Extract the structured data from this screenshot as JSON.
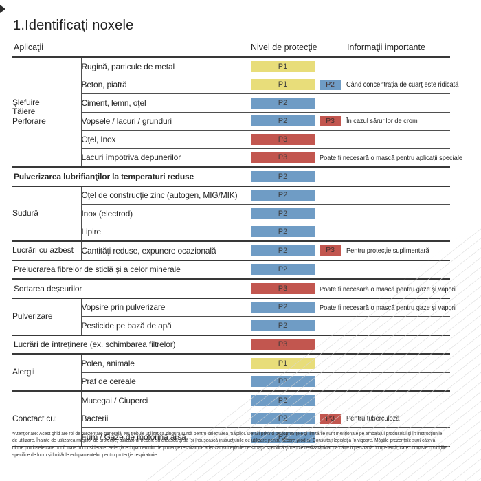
{
  "page": {
    "title": "1.Identificaţi noxele"
  },
  "table": {
    "headers": {
      "applications": "Aplicaţii",
      "level": "Nivel de protecţie",
      "info": "Informaţii importante"
    },
    "rows": [
      {
        "group": "Şlefuire\nTăiere\nPerforare",
        "group_span": 6,
        "application": "Rugină, particule de metal",
        "level": "P1"
      },
      {
        "application": "Beton, piatră",
        "level": "P1",
        "badge": "P2",
        "info": "Când concentraţia de cuarţ este ridicată"
      },
      {
        "application": "Ciment, lemn, oţel",
        "level": "P2"
      },
      {
        "application": "Vopsele / lacuri / grunduri",
        "level": "P2",
        "badge": "P3",
        "info": "În cazul sărurilor de crom"
      },
      {
        "application": "Oţel, Inox",
        "level": "P3"
      },
      {
        "application": "Lacuri împotriva depunerilor",
        "level": "P3",
        "info": "Poate fi necesară o mască pentru aplicaţii speciale"
      },
      {
        "full": true,
        "bold": true,
        "application": "Pulverizarea lubrifianţilor la temperaturi reduse",
        "level": "P2"
      },
      {
        "group": "Sudură",
        "group_span": 3,
        "application": "Oţel de construcţie zinc (autogen, MIG/MIK)",
        "level": "P2"
      },
      {
        "application": "Inox (electrod)",
        "level": "P2"
      },
      {
        "application": "Lipire",
        "level": "P2"
      },
      {
        "group": "Lucrări cu azbest",
        "group_span": 1,
        "application": "Cantităţi reduse, expunere ocazională",
        "level": "P2",
        "badge": "P3",
        "info": "Pentru protecţie suplimentară"
      },
      {
        "full": true,
        "application": "Prelucrarea fibrelor de sticlă şi a celor minerale",
        "level": "P2"
      },
      {
        "full": true,
        "application": "Sortarea deşeurilor",
        "level": "P3",
        "info": "Poate fi necesară o mască pentru gaze şi vapori"
      },
      {
        "group": "Pulverizare",
        "group_span": 2,
        "application": "Vopsire prin pulverizare",
        "level": "P2",
        "info": "Poate fi necesară o mască pentru gaze şi vapori"
      },
      {
        "application": "Pesticide pe bază de apă",
        "level": "P2"
      },
      {
        "full": true,
        "application": "Lucrări de întreţinere (ex. schimbarea filtrelor)",
        "level": "P3"
      },
      {
        "group": "Alergii",
        "group_span": 2,
        "application": "Polen, animale",
        "level": "P1"
      },
      {
        "application": "Praf de cereale",
        "level": "P2"
      },
      {
        "group": "Conctact cu:",
        "group_span": 3,
        "application": "Mucegai / Ciuperci",
        "level": "P2"
      },
      {
        "application": "Bacterii",
        "level": "P2",
        "badge": "P3",
        "info": "Pentru tuberculoză"
      },
      {
        "application": "Fum / Gaze de motorină arsă",
        "level": "P2"
      }
    ]
  },
  "levels": {
    "P1": "#e8dd7a",
    "P2": "#6f9cc5",
    "P3": "#c2564f"
  },
  "footer": {
    "lines": [
      "*Atenţionare: Acest ghid are rol de prezentare generală. Nu trebuie utilizat ca singura sursă pentru selectarea măştilor. Detalii privind performanţele şi limitările sunt menţionate pe ambalajul produsului şi în instrucţiunile",
      "de utilizare. Înainte de utilizarea măştilor de protecţie, utilizatorul trebuie să citească şi să îşi însuşească instrucţiunile de utilizare pentru fiecare produs. Consultaţi legislaţia în vigoare. Măştile prezentate sunt câteva",
      "dintre produsele care pot fi luate în considerare. Selecţia echipamentului de protecţie respiratorie adecvat va depinde de situaţia specifică şi trebuie realizată doar de către o persoană competentă, care cunoaşte condiţiile",
      "specifice de lucru şi limitările echipamentelor pentru protecţie respiratorie"
    ]
  }
}
